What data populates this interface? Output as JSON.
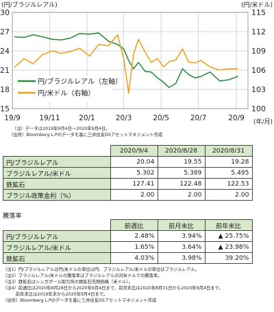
{
  "chart_data": {
    "type": "line",
    "left_unit": "(円/ブラジルレアル)",
    "right_unit": "(円/米ドル)",
    "x_unit": "(年/月)",
    "x_ticks": [
      "19/9",
      "19/11",
      "20/1",
      "20/3",
      "20/5",
      "20/7",
      "20/9"
    ],
    "y_left": {
      "ticks": [
        "30",
        "27",
        "24",
        "21",
        "18",
        "15"
      ],
      "range": [
        15,
        30
      ]
    },
    "y_right": {
      "ticks": [
        "115",
        "112",
        "109",
        "106",
        "103",
        "100"
      ],
      "range": [
        100,
        115
      ]
    },
    "grid": true,
    "legend_position": "bottom-left",
    "colors": {
      "brl": "#2e8b3e",
      "usd": "#f0a020"
    },
    "series": [
      {
        "name": "円/ブラジルレアル（左軸）",
        "axis": "left",
        "x": [
          "2019-09-04",
          "2019-09-20",
          "2019-10-05",
          "2019-10-20",
          "2019-11-05",
          "2019-11-20",
          "2019-12-05",
          "2019-12-20",
          "2020-01-05",
          "2020-01-20",
          "2020-02-05",
          "2020-02-20",
          "2020-03-01",
          "2020-03-09",
          "2020-03-17",
          "2020-03-25",
          "2020-04-05",
          "2020-04-15",
          "2020-04-25",
          "2020-05-05",
          "2020-05-14",
          "2020-05-25",
          "2020-06-05",
          "2020-06-15",
          "2020-06-25",
          "2020-07-05",
          "2020-07-20",
          "2020-08-05",
          "2020-08-20",
          "2020-09-04"
        ],
        "values": [
          26.2,
          26.1,
          26.5,
          26.2,
          25.8,
          25.7,
          26.0,
          26.7,
          26.6,
          26.8,
          25.5,
          25.0,
          24.3,
          22.5,
          21.2,
          22.2,
          20.8,
          20.7,
          19.8,
          19.1,
          18.3,
          18.9,
          21.2,
          20.3,
          19.8,
          20.0,
          20.7,
          19.3,
          19.5,
          20.04
        ]
      },
      {
        "name": "円/米ドル（右軸）",
        "axis": "right",
        "x": [
          "2019-09-04",
          "2019-09-20",
          "2019-10-05",
          "2019-10-20",
          "2019-11-05",
          "2019-11-20",
          "2019-12-05",
          "2019-12-20",
          "2020-01-05",
          "2020-01-20",
          "2020-02-05",
          "2020-02-20",
          "2020-03-01",
          "2020-03-09",
          "2020-03-17",
          "2020-03-25",
          "2020-04-05",
          "2020-04-15",
          "2020-04-25",
          "2020-05-05",
          "2020-05-14",
          "2020-05-25",
          "2020-06-05",
          "2020-06-15",
          "2020-06-25",
          "2020-07-05",
          "2020-07-20",
          "2020-08-05",
          "2020-08-20",
          "2020-09-04"
        ],
        "values": [
          106.4,
          107.8,
          107.0,
          108.4,
          109.0,
          108.6,
          108.9,
          109.4,
          108.2,
          110.0,
          109.8,
          111.5,
          107.8,
          102.4,
          108.5,
          110.8,
          108.8,
          107.2,
          107.8,
          106.5,
          107.3,
          107.6,
          109.3,
          107.3,
          107.1,
          107.5,
          106.5,
          106.0,
          106.2,
          106.2
        ]
      }
    ]
  },
  "notes_top": [
    "（注）データは2019年9月4日～2020年9月4日。",
    "（出所）Bloomberg L.Pのデータを基に三井住友DSアセットマネジメント作成"
  ],
  "table1": {
    "headers": [
      "2020/9/4",
      "2020/8/28",
      "2020/8/31"
    ],
    "rows": [
      {
        "label": "円/ブラジルレアル",
        "values": [
          "20.04",
          "19.55",
          "19.28"
        ]
      },
      {
        "label": "ブラジルレアル/米ドル",
        "values": [
          "5.302",
          "5.389",
          "5.495"
        ]
      },
      {
        "label": "鉄鉱石",
        "values": [
          "127.41",
          "122.48",
          "122.53"
        ]
      },
      {
        "label": "ブラジル政策金利（%）",
        "values": [
          "2.00",
          "2.00",
          "2.00"
        ]
      }
    ]
  },
  "table2": {
    "title": "騰落率",
    "headers": [
      "前週比",
      "前月末比",
      "前年末比"
    ],
    "rows": [
      {
        "label": "円/ブラジルレアル",
        "values": [
          "2.48%",
          "3.94%",
          "▲ 25.75%"
        ]
      },
      {
        "label": "ブラジルレアル/米ドル",
        "values": [
          "1.65%",
          "3.64%",
          "▲ 23.98%"
        ]
      },
      {
        "label": "鉄鉱石",
        "values": [
          "4.03%",
          "3.98%",
          "39.20%"
        ]
      }
    ]
  },
  "notes_bottom": [
    "（注1）円/ブラジルレアルは円/米ドルの単位は円、ブラジルレアル/米ドルの単位はブラジルレアル。",
    "（注2）ブラジルレアル/米ドルの騰落率はブラジルレアルの対米ドルでの騰落率。",
    "（注3）鉄鉱石はシンガポール取引所の鉄鉱石先物価格（米ドル）。",
    "（注4）前週比は2020年8月28日から2020年9月4日まで、前月末比は2020年8月31日から2020年9月4日まで、",
    "　　　前年末比は2019年末から2020年9月4日まで。",
    "（出所）Bloomberg L.Pのデータを基に三井住友DSアセットマネジメント作成"
  ]
}
